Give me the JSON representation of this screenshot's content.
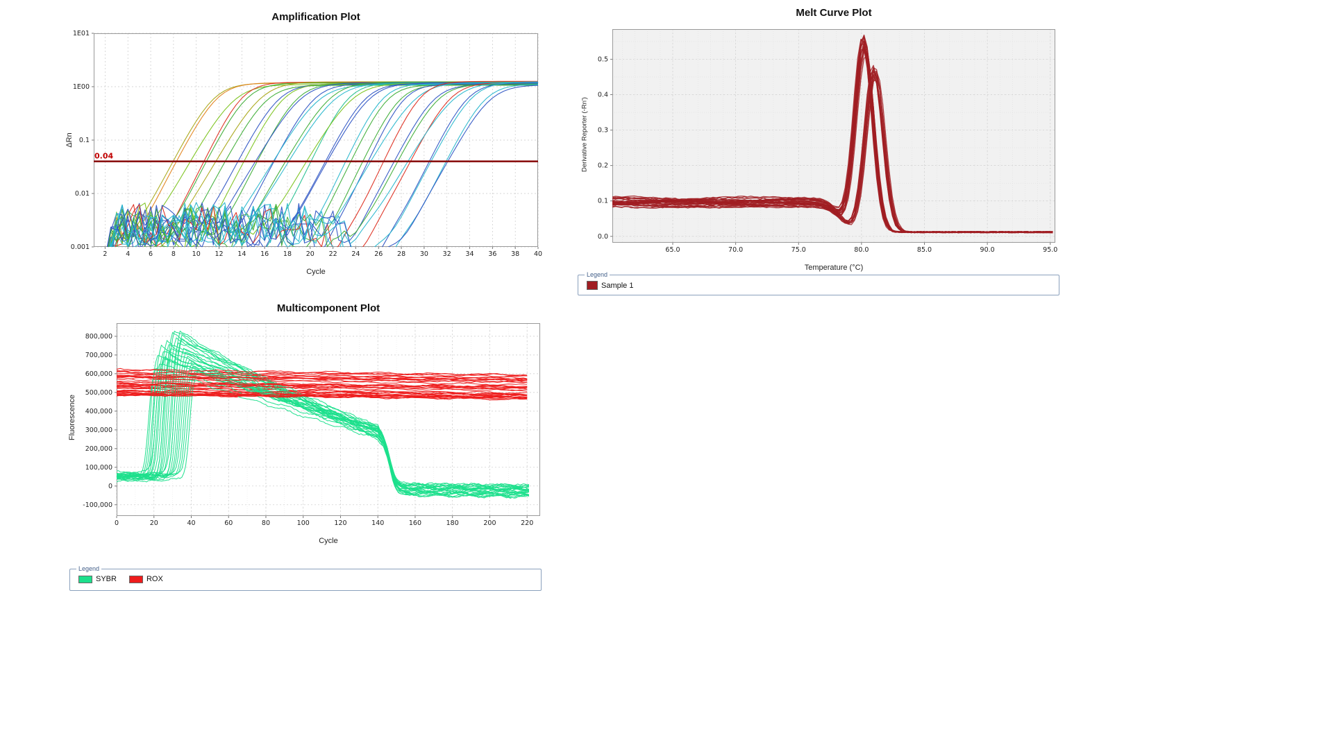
{
  "page": {
    "background": "#ffffff"
  },
  "chart_data": [
    {
      "id": "amplification",
      "type": "line",
      "title": "Amplification Plot",
      "xlabel": "Cycle",
      "ylabel": "ΔRn",
      "x_axis": {
        "min": 1,
        "max": 40,
        "ticks": [
          2,
          4,
          6,
          8,
          10,
          12,
          14,
          16,
          18,
          20,
          22,
          24,
          26,
          28,
          30,
          32,
          34,
          36,
          38,
          40
        ]
      },
      "y_axis": {
        "scale": "log",
        "min": 0.001,
        "max": 10,
        "ticks": [
          {
            "v": 10,
            "label": "1E01"
          },
          {
            "v": 1,
            "label": "1E00"
          },
          {
            "v": 0.1,
            "label": "0.1"
          },
          {
            "v": 0.01,
            "label": "0.01"
          },
          {
            "v": 0.001,
            "label": "0.001"
          }
        ]
      },
      "threshold": {
        "value": 0.04,
        "label": "0.04",
        "color": "#8B1212"
      },
      "curve_shape": "sigmoid",
      "plateau_rn": 1.15,
      "baseline_noise_max": 0.006,
      "series": [
        {
          "color": "#A9A717",
          "ct": 7.8
        },
        {
          "color": "#E2821A",
          "ct": 8.1
        },
        {
          "color": "#7BC31C",
          "ct": 9.6
        },
        {
          "color": "#DD2C1E",
          "ct": 10.3
        },
        {
          "color": "#3FAE38",
          "ct": 10.7
        },
        {
          "color": "#A9A717",
          "ct": 12.0
        },
        {
          "color": "#3FAE38",
          "ct": 12.4
        },
        {
          "color": "#2F55C4",
          "ct": 13.5
        },
        {
          "color": "#7BC31C",
          "ct": 13.9
        },
        {
          "color": "#3FAE38",
          "ct": 15.1
        },
        {
          "color": "#2F55C4",
          "ct": 15.5
        },
        {
          "color": "#2F55C4",
          "ct": 16.6
        },
        {
          "color": "#29B7CE",
          "ct": 17.0
        },
        {
          "color": "#3FAE38",
          "ct": 18.1
        },
        {
          "color": "#29B7CE",
          "ct": 18.5
        },
        {
          "color": "#23BF8F",
          "ct": 19.6
        },
        {
          "color": "#7BC31C",
          "ct": 20.0
        },
        {
          "color": "#2F55C4",
          "ct": 21.1
        },
        {
          "color": "#2F55C4",
          "ct": 21.5
        },
        {
          "color": "#29B7CE",
          "ct": 22.6
        },
        {
          "color": "#3FAE38",
          "ct": 23.0
        },
        {
          "color": "#3FAE38",
          "ct": 24.1
        },
        {
          "color": "#2F55C4",
          "ct": 24.5
        },
        {
          "color": "#29B7CE",
          "ct": 25.6
        },
        {
          "color": "#DD2C1E",
          "ct": 26.0
        },
        {
          "color": "#2F55C4",
          "ct": 27.1
        },
        {
          "color": "#3FAE38",
          "ct": 27.5
        },
        {
          "color": "#DD2C1E",
          "ct": 28.6
        },
        {
          "color": "#29B7CE",
          "ct": 29.0
        },
        {
          "color": "#2F55C4",
          "ct": 30.1
        },
        {
          "color": "#29B7CE",
          "ct": 30.5
        },
        {
          "color": "#29B7CE",
          "ct": 31.6
        },
        {
          "color": "#2F55C4",
          "ct": 32.0
        }
      ]
    },
    {
      "id": "melt_curve",
      "type": "line",
      "title": "Melt Curve Plot",
      "xlabel": "Temperature (°C)",
      "ylabel": "Derivative Reporter (-Rn')",
      "x_axis": {
        "min": 60.2,
        "max": 95.4,
        "ticks": [
          {
            "v": 65,
            "label": "65.0"
          },
          {
            "v": 70,
            "label": "70.0"
          },
          {
            "v": 75,
            "label": "75.0"
          },
          {
            "v": 80,
            "label": "80.0"
          },
          {
            "v": 85,
            "label": "85.0"
          },
          {
            "v": 90,
            "label": "90.0"
          },
          {
            "v": 95,
            "label": "95.0"
          }
        ]
      },
      "y_axis": {
        "min": -0.018,
        "max": 0.585,
        "ticks": [
          {
            "v": 0.5,
            "label": "0.5"
          },
          {
            "v": 0.4,
            "label": "0.4"
          },
          {
            "v": 0.3,
            "label": "0.3"
          },
          {
            "v": 0.2,
            "label": "0.2"
          },
          {
            "v": 0.1,
            "label": "0.1"
          },
          {
            "v": 0,
            "label": "0.0"
          }
        ]
      },
      "line_color": "#A01D22",
      "baseline_level": 0.1,
      "post_melt_level": 0.012,
      "series": [
        {
          "peak_temp": 80.05,
          "peak_height": 0.545
        },
        {
          "peak_temp": 80.15,
          "peak_height": 0.555
        },
        {
          "peak_temp": 80.2,
          "peak_height": 0.53
        },
        {
          "peak_temp": 80.1,
          "peak_height": 0.52
        },
        {
          "peak_temp": 80.25,
          "peak_height": 0.54
        },
        {
          "peak_temp": 80.3,
          "peak_height": 0.51
        },
        {
          "peak_temp": 80.2,
          "peak_height": 0.555
        },
        {
          "peak_temp": 80.1,
          "peak_height": 0.535
        },
        {
          "peak_temp": 80.15,
          "peak_height": 0.52
        },
        {
          "peak_temp": 80.3,
          "peak_height": 0.53
        },
        {
          "peak_temp": 80.25,
          "peak_height": 0.515
        },
        {
          "peak_temp": 80.2,
          "peak_height": 0.545
        },
        {
          "peak_temp": 80.35,
          "peak_height": 0.5
        },
        {
          "peak_temp": 80.1,
          "peak_height": 0.55
        },
        {
          "peak_temp": 80.2,
          "peak_height": 0.51
        },
        {
          "peak_temp": 80.3,
          "peak_height": 0.525
        },
        {
          "peak_temp": 80.15,
          "peak_height": 0.54
        },
        {
          "peak_temp": 80.9,
          "peak_height": 0.47
        },
        {
          "peak_temp": 81.0,
          "peak_height": 0.455
        },
        {
          "peak_temp": 81.1,
          "peak_height": 0.46
        },
        {
          "peak_temp": 80.95,
          "peak_height": 0.445
        },
        {
          "peak_temp": 81.05,
          "peak_height": 0.47
        },
        {
          "peak_temp": 81.15,
          "peak_height": 0.44
        },
        {
          "peak_temp": 80.9,
          "peak_height": 0.46
        },
        {
          "peak_temp": 81.0,
          "peak_height": 0.44
        },
        {
          "peak_temp": 81.1,
          "peak_height": 0.45
        },
        {
          "peak_temp": 80.95,
          "peak_height": 0.465
        },
        {
          "peak_temp": 81.05,
          "peak_height": 0.435
        },
        {
          "peak_temp": 81.2,
          "peak_height": 0.455
        }
      ],
      "legend": {
        "box_title": "Legend",
        "items": [
          {
            "label": "Sample 1",
            "color": "#A01D22"
          }
        ]
      }
    },
    {
      "id": "multicomponent",
      "type": "line",
      "title": "Multicomponent Plot",
      "xlabel": "Cycle",
      "ylabel": "Fluorescence",
      "x_axis": {
        "min": 0,
        "max": 227,
        "ticks": [
          0,
          20,
          40,
          60,
          80,
          100,
          120,
          140,
          160,
          180,
          200,
          220
        ]
      },
      "y_axis": {
        "min": -160000,
        "max": 870000,
        "ticks": [
          {
            "v": 800000,
            "label": "800,000"
          },
          {
            "v": 700000,
            "label": "700,000"
          },
          {
            "v": 600000,
            "label": "600,000"
          },
          {
            "v": 500000,
            "label": "500,000"
          },
          {
            "v": 400000,
            "label": "400,000"
          },
          {
            "v": 300000,
            "label": "300,000"
          },
          {
            "v": 200000,
            "label": "200,000"
          },
          {
            "v": 100000,
            "label": "100,000"
          },
          {
            "v": 0,
            "label": "0"
          },
          {
            "v": -100000,
            "label": "-100,000"
          }
        ]
      },
      "dyes": {
        "sybr": {
          "name": "SYBR",
          "color": "#1CDF8C",
          "start_level_range": [
            28000,
            76000
          ],
          "level_at_140_range": [
            252000,
            320000
          ],
          "tail_level_range": [
            -51000,
            15000
          ],
          "drop_cycle": 146,
          "series": [
            {
              "rise_cycle": 14,
              "peak": 640000
            },
            {
              "rise_cycle": 15,
              "peak": 700000
            },
            {
              "rise_cycle": 16,
              "peak": 660000
            },
            {
              "rise_cycle": 17,
              "peak": 752000
            },
            {
              "rise_cycle": 18,
              "peak": 722000
            },
            {
              "rise_cycle": 19,
              "peak": 690000
            },
            {
              "rise_cycle": 20,
              "peak": 780000
            },
            {
              "rise_cycle": 21,
              "peak": 760000
            },
            {
              "rise_cycle": 22,
              "peak": 702000
            },
            {
              "rise_cycle": 23,
              "peak": 820000
            },
            {
              "rise_cycle": 24,
              "peak": 840000
            },
            {
              "rise_cycle": 25,
              "peak": 800000
            },
            {
              "rise_cycle": 26,
              "peak": 772000
            },
            {
              "rise_cycle": 27,
              "peak": 835000
            },
            {
              "rise_cycle": 28,
              "peak": 812000
            },
            {
              "rise_cycle": 29,
              "peak": 745000
            },
            {
              "rise_cycle": 30,
              "peak": 722000
            },
            {
              "rise_cycle": 31,
              "peak": 700000
            },
            {
              "rise_cycle": 32,
              "peak": 682000
            },
            {
              "rise_cycle": 33,
              "peak": 655000
            },
            {
              "rise_cycle": 34,
              "peak": 640000
            },
            {
              "rise_cycle": 35,
              "peak": 622000
            },
            {
              "rise_cycle": 36,
              "peak": 612000
            },
            {
              "rise_cycle": 28,
              "peak": 790000
            },
            {
              "rise_cycle": 22,
              "peak": 748000
            },
            {
              "rise_cycle": 18,
              "peak": 688000
            }
          ]
        },
        "rox": {
          "name": "ROX",
          "color": "#EE1C1C",
          "count": 38,
          "level_min": 485000,
          "level_max": 628000
        }
      },
      "legend": {
        "box_title": "Legend",
        "items": [
          {
            "label": "SYBR",
            "color": "#1CDF8C"
          },
          {
            "label": "ROX",
            "color": "#EE1C1C"
          }
        ]
      }
    }
  ]
}
